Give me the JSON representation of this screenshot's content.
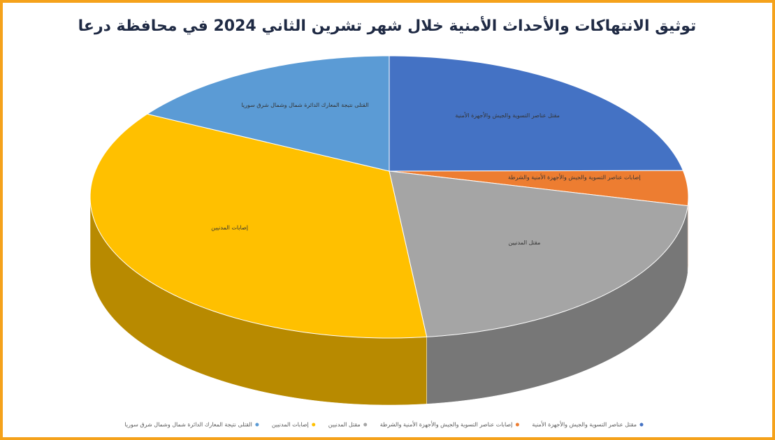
{
  "chart_data": {
    "type": "pie3d",
    "title": "توثيق الانتهاكات والأحداث الأمنية خلال شهر تشرين الثاني 2024 في محافظة درعا",
    "categories": [
      "مقتل عناصر التسوية والجيش والأجهزة الأمنية",
      "إصابات عناصر التسوية والجيش والأجهزة الأمنية والشرطة",
      "مقتل المدنيين",
      "إصابات المدنيين",
      "القتلى نتيجة المعارك الدائرة شمال وشمال شرق سوريا"
    ],
    "values": [
      22,
      4,
      22,
      37,
      15
    ],
    "colors": [
      "#4472c4",
      "#ed7d31",
      "#a5a5a5",
      "#ffc000",
      "#5b9bd5"
    ],
    "legend": "bottom"
  }
}
